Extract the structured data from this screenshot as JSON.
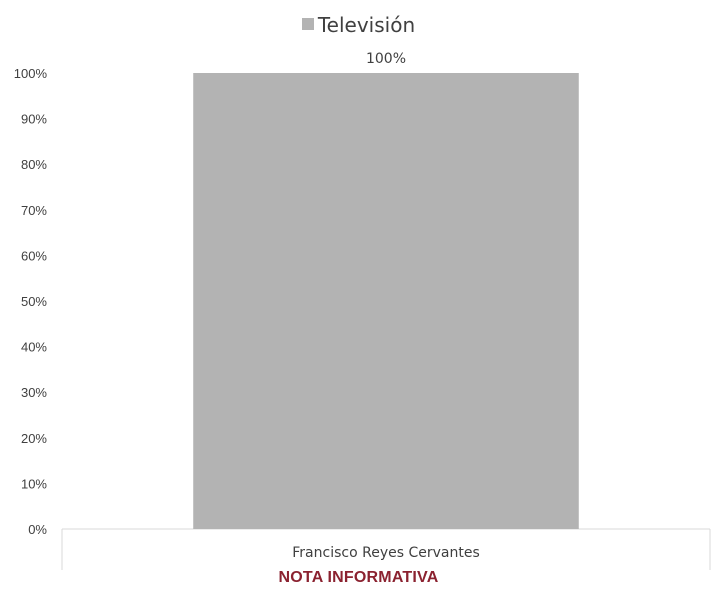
{
  "chart_data": {
    "type": "bar",
    "categories": [
      "Francisco Reyes Cervantes"
    ],
    "series": [
      {
        "name": "Televisión",
        "values": [
          100
        ],
        "color": "#b3b3b3"
      }
    ],
    "data_labels": [
      "100%"
    ],
    "yticks": [
      "0%",
      "10%",
      "20%",
      "30%",
      "40%",
      "50%",
      "60%",
      "70%",
      "80%",
      "90%",
      "100%"
    ],
    "ylim": [
      0,
      100
    ],
    "grid": false,
    "legend_position": "top"
  },
  "footer": {
    "label": "NOTA INFORMATIVA",
    "color": "#8b2230"
  }
}
